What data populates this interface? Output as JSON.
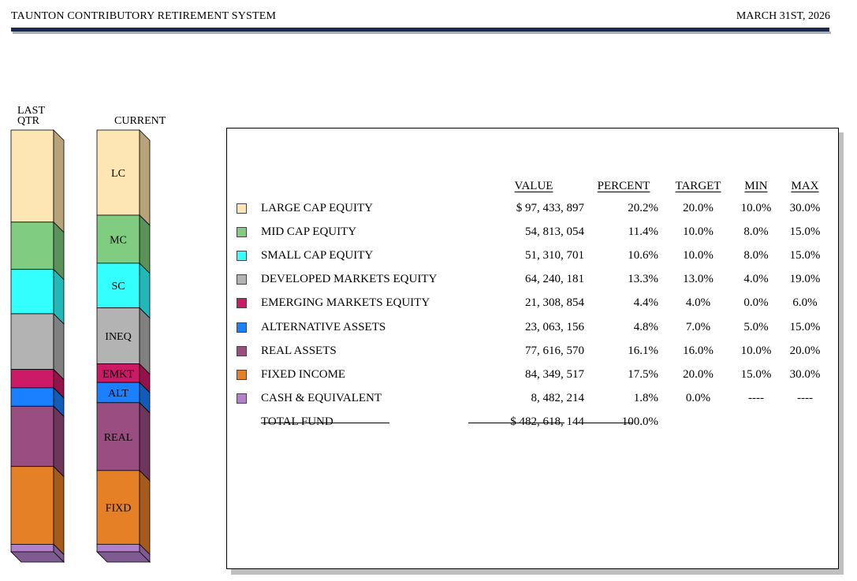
{
  "header": {
    "title": "TAUNTON CONTRIBUTORY RETIREMENT SYSTEM",
    "date": "MARCH 31ST, 2026"
  },
  "columns": {
    "last_qtr": "LAST\nQTR",
    "last_qtr_line1": "LAST",
    "last_qtr_line2": "QTR",
    "current": "CURRENT"
  },
  "table_headers": {
    "value": "VALUE",
    "percent": "PERCENT",
    "target": "TARGET",
    "min": "MIN",
    "max": "MAX"
  },
  "total": {
    "name": "TOTAL FUND",
    "value": "$ 482, 618, 144",
    "percent": "100.0%"
  },
  "chart_data": {
    "type": "stacked-bar",
    "categories": [
      "LAST QTR",
      "CURRENT"
    ],
    "segments": [
      {
        "code": "LC",
        "name": "LARGE CAP EQUITY",
        "color": "#FDE5B4",
        "side": "#B8A27A",
        "last_qtr": 22.0,
        "current": 20.2,
        "value": "$ 97, 433, 897",
        "percent": "20.2%",
        "target": "20.0%",
        "min": "10.0%",
        "max": "30.0%"
      },
      {
        "code": "MC",
        "name": "MID CAP EQUITY",
        "color": "#80CC80",
        "side": "#5A925A",
        "last_qtr": 11.3,
        "current": 11.4,
        "value": "54, 813, 054",
        "percent": "11.4%",
        "target": "10.0%",
        "min": "8.0%",
        "max": "15.0%"
      },
      {
        "code": "SC",
        "name": "SMALL CAP EQUITY",
        "color": "#33FFFF",
        "side": "#24B7B7",
        "last_qtr": 10.6,
        "current": 10.6,
        "value": "51, 310, 701",
        "percent": "10.6%",
        "target": "10.0%",
        "min": "8.0%",
        "max": "15.0%"
      },
      {
        "code": "INEQ",
        "name": "DEVELOPED MARKETS EQUITY",
        "color": "#B3B3B3",
        "side": "#808080",
        "last_qtr": 13.3,
        "current": 13.3,
        "value": "64, 240, 181",
        "percent": "13.3%",
        "target": "13.0%",
        "min": "4.0%",
        "max": "19.0%"
      },
      {
        "code": "EMKT",
        "name": "EMERGING MARKETS EQUITY",
        "color": "#CC1A66",
        "side": "#921249",
        "last_qtr": 4.4,
        "current": 4.4,
        "value": "21, 308, 854",
        "percent": "4.4%",
        "target": "4.0%",
        "min": "0.0%",
        "max": "6.0%"
      },
      {
        "code": "ALT",
        "name": "ALTERNATIVE ASSETS",
        "color": "#1A80FF",
        "side": "#125BB7",
        "last_qtr": 4.4,
        "current": 4.8,
        "value": "23, 063, 156",
        "percent": "4.8%",
        "target": "7.0%",
        "min": "5.0%",
        "max": "15.0%"
      },
      {
        "code": "REAL",
        "name": "REAL ASSETS",
        "color": "#994D80",
        "side": "#6D375B",
        "last_qtr": 14.4,
        "current": 16.1,
        "value": "77, 616, 570",
        "percent": "16.1%",
        "target": "16.0%",
        "min": "10.0%",
        "max": "20.0%"
      },
      {
        "code": "FIXD",
        "name": "FIXED INCOME",
        "color": "#E68026",
        "side": "#A45B1B",
        "last_qtr": 18.6,
        "current": 17.5,
        "value": "84, 349, 517",
        "percent": "17.5%",
        "target": "20.0%",
        "min": "15.0%",
        "max": "30.0%"
      },
      {
        "code": "CASH",
        "name": "CASH & EQUIVALENT",
        "color": "#B380CC",
        "side": "#805B92",
        "last_qtr": 1.8,
        "current": 1.8,
        "value": "8, 482, 214",
        "percent": "1.8%",
        "target": "0.0%",
        "min": "----",
        "max": "----"
      }
    ]
  }
}
